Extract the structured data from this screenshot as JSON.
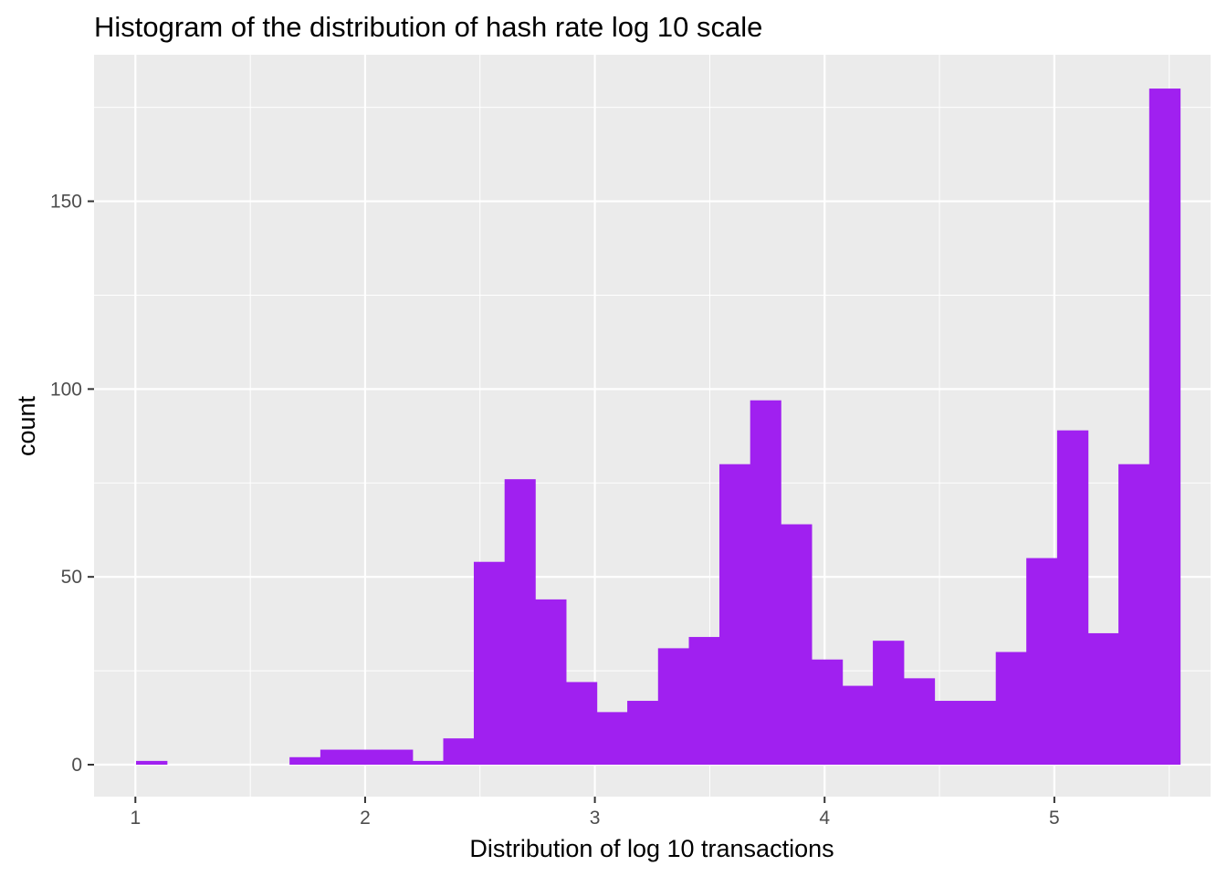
{
  "chart_data": {
    "type": "bar",
    "title": "Histogram of the distribution of hash rate log 10 scale",
    "xlabel": "Distribution of log 10 transactions",
    "ylabel": "count",
    "xlim": [
      0.82,
      5.68
    ],
    "ylim": [
      -8.5,
      189
    ],
    "x_ticks": [
      1,
      2,
      3,
      4,
      5
    ],
    "y_ticks": [
      0,
      50,
      100,
      150
    ],
    "x_tick_labels": [
      "1",
      "2",
      "3",
      "4",
      "5"
    ],
    "y_tick_labels": [
      "0",
      "50",
      "100",
      "150"
    ],
    "grid": true,
    "legend": "none",
    "bar_color": "#a020f0",
    "panel_color": "#ebebeb",
    "grid_color": "#ffffff",
    "bins": [
      {
        "x_start": 1.003,
        "x_end": 1.137,
        "count": 1
      },
      {
        "x_start": 1.137,
        "x_end": 1.271,
        "count": 0
      },
      {
        "x_start": 1.271,
        "x_end": 1.404,
        "count": 0
      },
      {
        "x_start": 1.404,
        "x_end": 1.538,
        "count": 0
      },
      {
        "x_start": 1.538,
        "x_end": 1.671,
        "count": 0
      },
      {
        "x_start": 1.671,
        "x_end": 1.805,
        "count": 2
      },
      {
        "x_start": 1.805,
        "x_end": 1.939,
        "count": 4
      },
      {
        "x_start": 1.939,
        "x_end": 2.072,
        "count": 4
      },
      {
        "x_start": 2.072,
        "x_end": 2.206,
        "count": 4
      },
      {
        "x_start": 2.206,
        "x_end": 2.34,
        "count": 1
      },
      {
        "x_start": 2.34,
        "x_end": 2.473,
        "count": 7
      },
      {
        "x_start": 2.473,
        "x_end": 2.607,
        "count": 54
      },
      {
        "x_start": 2.607,
        "x_end": 2.74,
        "count": 76
      },
      {
        "x_start": 2.74,
        "x_end": 2.874,
        "count": 44
      },
      {
        "x_start": 2.874,
        "x_end": 3.008,
        "count": 22
      },
      {
        "x_start": 3.008,
        "x_end": 3.141,
        "count": 14
      },
      {
        "x_start": 3.141,
        "x_end": 3.275,
        "count": 17
      },
      {
        "x_start": 3.275,
        "x_end": 3.409,
        "count": 31
      },
      {
        "x_start": 3.409,
        "x_end": 3.542,
        "count": 34
      },
      {
        "x_start": 3.542,
        "x_end": 3.676,
        "count": 80
      },
      {
        "x_start": 3.676,
        "x_end": 3.809,
        "count": 97
      },
      {
        "x_start": 3.809,
        "x_end": 3.943,
        "count": 64
      },
      {
        "x_start": 3.943,
        "x_end": 4.077,
        "count": 28
      },
      {
        "x_start": 4.077,
        "x_end": 4.21,
        "count": 21
      },
      {
        "x_start": 4.21,
        "x_end": 4.344,
        "count": 33
      },
      {
        "x_start": 4.344,
        "x_end": 4.478,
        "count": 23
      },
      {
        "x_start": 4.478,
        "x_end": 4.611,
        "count": 17
      },
      {
        "x_start": 4.611,
        "x_end": 4.745,
        "count": 17
      },
      {
        "x_start": 4.745,
        "x_end": 4.878,
        "count": 30
      },
      {
        "x_start": 4.878,
        "x_end": 5.012,
        "count": 55
      },
      {
        "x_start": 5.012,
        "x_end": 5.146,
        "count": 89
      },
      {
        "x_start": 5.146,
        "x_end": 5.279,
        "count": 35
      },
      {
        "x_start": 5.279,
        "x_end": 5.413,
        "count": 80
      },
      {
        "x_start": 5.413,
        "x_end": 5.547,
        "count": 180
      }
    ]
  }
}
